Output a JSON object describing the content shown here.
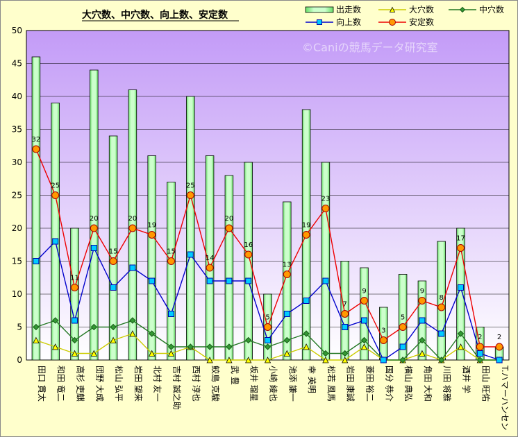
{
  "chart_data": {
    "type": "bar",
    "title": "大穴数、中穴数、向上数、安定数",
    "watermark": "©Caniの競馬データ研究室",
    "ylim": [
      0,
      50
    ],
    "yticks": [
      0,
      5,
      10,
      15,
      20,
      25,
      30,
      35,
      40,
      45,
      50
    ],
    "grid": true,
    "legend_position": "top-right",
    "categories": [
      "田口 貫太",
      "和田 竜二",
      "高杉 吏麒",
      "団野 大成",
      "松山 弘平",
      "岩田 望来",
      "北村 友一",
      "吉村 誠之助",
      "西村 淳也",
      "鮫島 克駿",
      "武 豊",
      "坂井 瑠星",
      "小崎 綾也",
      "池添 謙一",
      "幸 英明",
      "松若 風馬",
      "岩田 康誠",
      "菱田 裕二",
      "国分 恭介",
      "横山 典弘",
      "角田 大和",
      "川田 将雅",
      "酒井 学",
      "田山 旺佑",
      "T.ハマーハンセン"
    ],
    "series": [
      {
        "name": "出走数",
        "kind": "bar",
        "color": "#99ff99",
        "values": [
          46,
          39,
          20,
          44,
          34,
          41,
          31,
          27,
          40,
          31,
          28,
          30,
          10,
          24,
          38,
          30,
          15,
          14,
          8,
          13,
          12,
          18,
          20,
          5,
          2
        ]
      },
      {
        "name": "大穴数",
        "kind": "line",
        "marker": "triangle",
        "color": "#ffff00",
        "values": [
          3,
          2,
          1,
          1,
          3,
          4,
          1,
          1,
          2,
          0,
          0,
          0,
          0,
          1,
          2,
          0,
          0,
          2,
          0,
          0,
          1,
          0,
          2,
          0,
          0
        ]
      },
      {
        "name": "中穴数",
        "kind": "line",
        "marker": "diamond",
        "color": "#339933",
        "values": [
          5,
          6,
          3,
          5,
          5,
          6,
          4,
          2,
          2,
          2,
          2,
          3,
          2,
          3,
          4,
          1,
          1,
          3,
          0,
          0,
          3,
          0,
          4,
          0,
          0
        ]
      },
      {
        "name": "向上数",
        "kind": "line",
        "marker": "square",
        "color": "#00ccff",
        "values": [
          15,
          18,
          6,
          17,
          11,
          14,
          12,
          7,
          16,
          12,
          12,
          12,
          3,
          7,
          9,
          12,
          5,
          6,
          0,
          2,
          6,
          4,
          11,
          1,
          0
        ]
      },
      {
        "name": "安定数",
        "kind": "line",
        "marker": "circle",
        "color": "#ff9900",
        "values": [
          32,
          25,
          11,
          20,
          15,
          20,
          19,
          15,
          25,
          14,
          20,
          16,
          5,
          13,
          19,
          23,
          7,
          9,
          3,
          5,
          9,
          8,
          17,
          2,
          2
        ]
      }
    ]
  }
}
